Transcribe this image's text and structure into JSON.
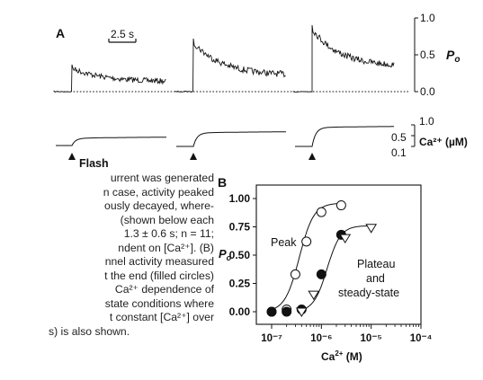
{
  "panel_a": {
    "label": "A",
    "scale_bar": "2.5 s",
    "flash_label": "Flash",
    "po_axis": {
      "ticks": [
        "1.0",
        "0.5",
        "0.0"
      ],
      "label": "P",
      "label_sub": "o"
    },
    "ca_axis": {
      "ticks": [
        "1.0",
        "0.5",
        "0.1"
      ],
      "label": "Ca²⁺ (µM)"
    }
  },
  "caption_lines": [
    "urrent was generated",
    "n case, activity peaked",
    "ously decayed, where-",
    "(shown below each",
    "1.3 ± 0.6 s; n = 11;",
    "ndent on [Ca²⁺]. (B)",
    "nnel activity measured",
    "t the end (filled circles)",
    "Ca²⁺ dependence of",
    "state conditions where",
    "t constant [Ca²⁺] over",
    "s) is also shown."
  ],
  "chart_data": {
    "type": "scatter",
    "panel_label": "B",
    "title": "",
    "xlabel": "Ca²⁺ (M)",
    "ylabel": "Po",
    "xscale": "log",
    "xlim": [
      1e-07,
      0.0001
    ],
    "ylim": [
      0,
      1
    ],
    "x_tick_labels": [
      "10⁻⁷",
      "10⁻⁶",
      "10⁻⁵",
      "10⁻⁴"
    ],
    "y_tick_labels": [
      "0.00",
      "0.25",
      "0.50",
      "0.75",
      "1.00"
    ],
    "annotations": [
      "Peak",
      "Plateau",
      "and",
      "steady-state"
    ],
    "series": [
      {
        "name": "Peak",
        "marker": "open-circle",
        "x": [
          1e-07,
          2e-07,
          3e-07,
          5e-07,
          1e-06,
          2.5e-06
        ],
        "y": [
          0.0,
          0.02,
          0.33,
          0.62,
          0.88,
          0.94
        ]
      },
      {
        "name": "Plateau and steady-state",
        "marker": "filled-circle",
        "x": [
          1e-07,
          2e-07,
          4e-07,
          1e-06,
          2.5e-06
        ],
        "y": [
          0.0,
          0.0,
          0.02,
          0.33,
          0.68
        ]
      },
      {
        "name": "Plateau and steady-state",
        "marker": "open-triangle",
        "x": [
          4e-07,
          7e-07,
          3e-06,
          1e-05
        ],
        "y": [
          0.0,
          0.15,
          0.65,
          0.74
        ]
      }
    ]
  }
}
